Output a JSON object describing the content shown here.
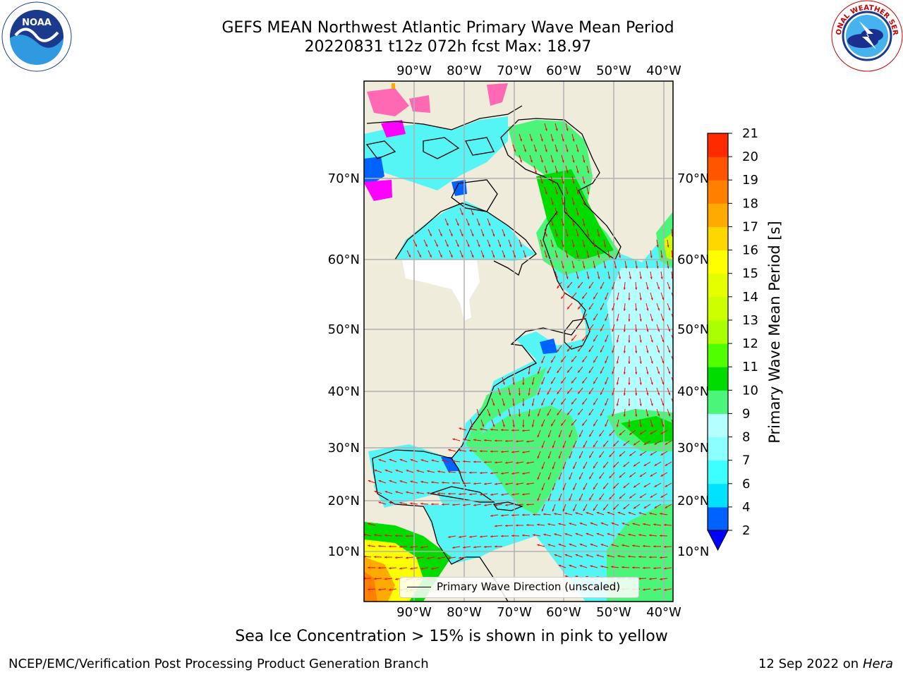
{
  "header": {
    "title_line1": "GEFS MEAN Northwest Atlantic Primary Wave Mean Period",
    "title_line2": "20220831 t12z 072h fcst   Max: 18.97"
  },
  "logos": {
    "left": "noaa-logo",
    "left_text": "NOAA",
    "right": "nws-logo",
    "right_text": "NATIONAL WEATHER SERVICE"
  },
  "map": {
    "lon_labels": [
      "90°W",
      "80°W",
      "70°W",
      "60°W",
      "50°W",
      "40°W"
    ],
    "lat_labels": [
      "70°N",
      "60°N",
      "50°N",
      "40°N",
      "30°N",
      "20°N",
      "10°N"
    ],
    "legend_text": "Primary Wave Direction (unscaled)",
    "arrow_color": "#ff0000",
    "land_color": "#efecdc",
    "ocean_base_color": "#55f5f5"
  },
  "colorbar": {
    "label": "Primary Wave Mean Period [s]",
    "ticks": [
      "2",
      "4",
      "6",
      "7",
      "8",
      "9",
      "10",
      "11",
      "12",
      "13",
      "14",
      "15",
      "16",
      "17",
      "18",
      "19",
      "20",
      "21"
    ],
    "colors": [
      "#0062ff",
      "#00e2ff",
      "#3dffff",
      "#8cffff",
      "#b4ffff",
      "#4bf57a",
      "#00dc00",
      "#50ff00",
      "#aaff00",
      "#ccff00",
      "#e6ff00",
      "#ffff00",
      "#ffd700",
      "#ffaa00",
      "#ff8000",
      "#ff5500",
      "#ff2a00",
      "#ff0000"
    ],
    "under_color": "#0000ff"
  },
  "footer": {
    "note": "Sea Ice Concentration > 15% is shown in pink to yellow",
    "left": "NCEP/EMC/Verification Post Processing Product Generation Branch",
    "right_date": "12 Sep 2022 on",
    "right_machine": "Hera"
  }
}
